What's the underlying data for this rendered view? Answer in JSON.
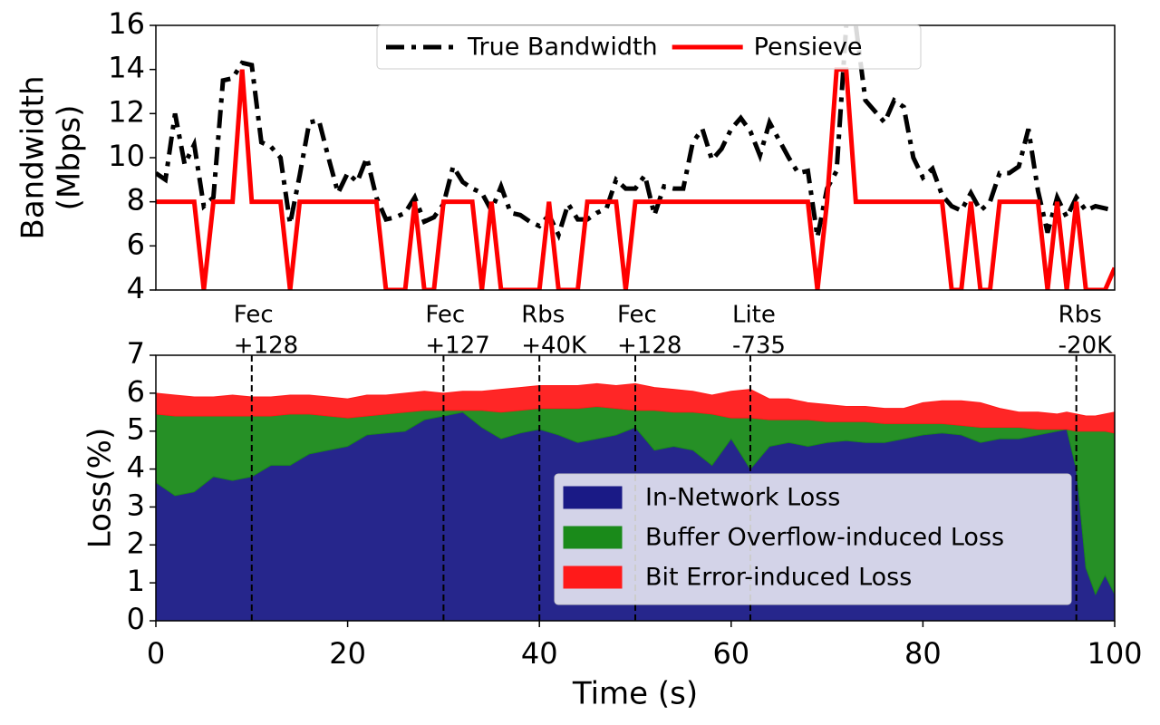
{
  "chart_data": [
    {
      "type": "line",
      "ylabel": [
        "Bandwidth",
        "(Mbps)"
      ],
      "x": [
        0,
        1,
        2,
        3,
        4,
        5,
        6,
        7,
        8,
        9,
        10,
        11,
        12,
        13,
        14,
        15,
        16,
        17,
        18,
        19,
        20,
        21,
        22,
        23,
        24,
        25,
        26,
        27,
        28,
        29,
        30,
        31,
        32,
        33,
        34,
        35,
        36,
        37,
        38,
        39,
        40,
        41,
        42,
        43,
        44,
        45,
        46,
        47,
        48,
        49,
        50,
        51,
        52,
        53,
        54,
        55,
        56,
        57,
        58,
        59,
        60,
        61,
        62,
        63,
        64,
        65,
        66,
        67,
        68,
        69,
        70,
        71,
        72,
        73,
        74,
        75,
        76,
        77,
        78,
        79,
        80,
        81,
        82,
        83,
        84,
        85,
        86,
        87,
        88,
        89,
        90,
        91,
        92,
        93,
        94,
        95,
        96,
        97,
        98,
        99,
        100
      ],
      "series": [
        {
          "name": "True Bandwidth",
          "color": "#000000",
          "linestyle": "dashdot",
          "values": [
            9.3,
            9.0,
            12.0,
            9.7,
            10.6,
            7.8,
            8.2,
            13.5,
            13.6,
            14.3,
            14.2,
            10.7,
            10.5,
            10.0,
            7.0,
            9.2,
            11.6,
            11.7,
            10.0,
            8.4,
            9.3,
            8.9,
            10.0,
            8.2,
            7.2,
            7.3,
            7.5,
            8.2,
            7.1,
            7.3,
            7.9,
            9.6,
            8.9,
            8.6,
            8.4,
            7.6,
            8.7,
            7.5,
            7.4,
            7.1,
            6.9,
            7.4,
            6.5,
            7.9,
            7.2,
            7.2,
            7.5,
            7.7,
            9.0,
            8.6,
            8.6,
            9.2,
            7.4,
            8.7,
            8.6,
            8.6,
            10.7,
            11.3,
            9.9,
            10.4,
            11.3,
            11.8,
            11.2,
            10.1,
            11.6,
            10.8,
            10.0,
            9.3,
            9.4,
            6.4,
            8.6,
            9.4,
            16,
            16,
            12.6,
            12.1,
            11.6,
            12.6,
            12.3,
            10.0,
            9.1,
            9.5,
            8.3,
            7.8,
            7.6,
            8.4,
            7.6,
            8.0,
            9.3,
            9.3,
            9.6,
            11.3,
            8.5,
            6.6,
            8.2,
            7.3,
            8.2,
            7.6,
            7.8,
            7.7,
            7.6
          ]
        },
        {
          "name": "Pensieve",
          "color": "#ff0000",
          "linestyle": "solid",
          "values": [
            8,
            8,
            8,
            8,
            8,
            4,
            8,
            8,
            8,
            14,
            8,
            8,
            8,
            8,
            4,
            8,
            8,
            8,
            8,
            8,
            8,
            8,
            8,
            8,
            4,
            4,
            4,
            8,
            4,
            4,
            8,
            8,
            8,
            8,
            4,
            8,
            4,
            4,
            4,
            4,
            4,
            8,
            4,
            4,
            4,
            8,
            8,
            8,
            8,
            4,
            8,
            8,
            8,
            8,
            8,
            8,
            8,
            8,
            8,
            8,
            8,
            8,
            8,
            8,
            8,
            8,
            8,
            8,
            8,
            4,
            8,
            14,
            14,
            8,
            8,
            8,
            8,
            8,
            8,
            8,
            8,
            8,
            8,
            4,
            4,
            8,
            4,
            4,
            8,
            8,
            8,
            8,
            8,
            4,
            8,
            4,
            8,
            4,
            4,
            4,
            5
          ]
        }
      ],
      "xlim": [
        0,
        100
      ],
      "ylim": [
        4,
        16
      ],
      "yticks": [
        4,
        6,
        8,
        10,
        12,
        14,
        16
      ],
      "legend": "upper center"
    },
    {
      "type": "stacked_area",
      "ylabel": "Loss(%)",
      "xlabel": "Time (s)",
      "x": [
        0,
        2,
        4,
        6,
        8,
        10,
        12,
        14,
        16,
        18,
        20,
        22,
        24,
        26,
        28,
        30,
        32,
        34,
        36,
        38,
        40,
        42,
        44,
        46,
        48,
        50,
        52,
        54,
        56,
        58,
        60,
        62,
        64,
        66,
        68,
        70,
        72,
        74,
        76,
        78,
        80,
        82,
        84,
        86,
        88,
        90,
        92,
        94,
        95,
        96,
        97,
        98,
        99,
        100
      ],
      "series": [
        {
          "name": "In-Network Loss",
          "color": "#1a1a86",
          "values": [
            3.65,
            3.3,
            3.4,
            3.8,
            3.7,
            3.8,
            4.1,
            4.1,
            4.4,
            4.5,
            4.6,
            4.9,
            4.95,
            5.0,
            5.3,
            5.4,
            5.5,
            5.1,
            4.8,
            4.95,
            5.05,
            4.9,
            4.7,
            4.8,
            4.9,
            5.1,
            4.5,
            4.6,
            4.5,
            4.1,
            4.8,
            4.0,
            4.6,
            4.7,
            4.6,
            4.7,
            4.75,
            4.7,
            4.7,
            4.8,
            4.9,
            4.95,
            4.9,
            4.7,
            4.8,
            4.8,
            4.9,
            5.0,
            5.05,
            4.0,
            1.4,
            0.7,
            1.2,
            0.7
          ]
        },
        {
          "name": "Buffer Overflow-induced Loss",
          "color": "#1a8a1a",
          "values": [
            1.8,
            2.1,
            2.0,
            1.6,
            1.7,
            1.6,
            1.3,
            1.35,
            1.05,
            0.9,
            0.75,
            0.5,
            0.5,
            0.5,
            0.25,
            0.15,
            0.05,
            0.45,
            0.7,
            0.6,
            0.55,
            0.7,
            0.9,
            0.85,
            0.7,
            0.45,
            1.05,
            0.9,
            1.0,
            1.35,
            0.55,
            1.35,
            0.7,
            0.6,
            0.7,
            0.55,
            0.5,
            0.55,
            0.5,
            0.4,
            0.3,
            0.25,
            0.25,
            0.4,
            0.3,
            0.3,
            0.15,
            0.05,
            0,
            1.0,
            3.6,
            4.3,
            3.8,
            4.25
          ]
        },
        {
          "name": "Bit Error-induced Loss",
          "color": "#ff1a1a",
          "values": [
            0.55,
            0.55,
            0.5,
            0.5,
            0.55,
            0.5,
            0.5,
            0.5,
            0.5,
            0.5,
            0.5,
            0.55,
            0.5,
            0.5,
            0.5,
            0.45,
            0.5,
            0.5,
            0.6,
            0.6,
            0.6,
            0.6,
            0.6,
            0.6,
            0.6,
            0.7,
            0.6,
            0.6,
            0.55,
            0.5,
            0.7,
            0.75,
            0.55,
            0.55,
            0.45,
            0.45,
            0.4,
            0.4,
            0.4,
            0.4,
            0.55,
            0.6,
            0.65,
            0.65,
            0.5,
            0.4,
            0.45,
            0.4,
            0.45,
            0.45,
            0.4,
            0.4,
            0.45,
            0.55
          ]
        }
      ],
      "xlim": [
        0,
        100
      ],
      "xticks": [
        0,
        20,
        40,
        60,
        80,
        100
      ],
      "ylim": [
        0,
        7
      ],
      "yticks": [
        0,
        1,
        2,
        3,
        4,
        5,
        6,
        7
      ],
      "legend": "lower right",
      "annotations": [
        {
          "x": 10,
          "lines": [
            "Fec",
            "+128"
          ]
        },
        {
          "x": 30,
          "lines": [
            "Fec",
            "+127"
          ]
        },
        {
          "x": 40,
          "lines": [
            "Rbs",
            "+40K"
          ]
        },
        {
          "x": 50,
          "lines": [
            "Fec",
            "+128"
          ]
        },
        {
          "x": 62,
          "lines": [
            "Lite",
            "-735"
          ]
        },
        {
          "x": 96,
          "lines": [
            "Rbs",
            "-20K"
          ]
        }
      ]
    }
  ]
}
